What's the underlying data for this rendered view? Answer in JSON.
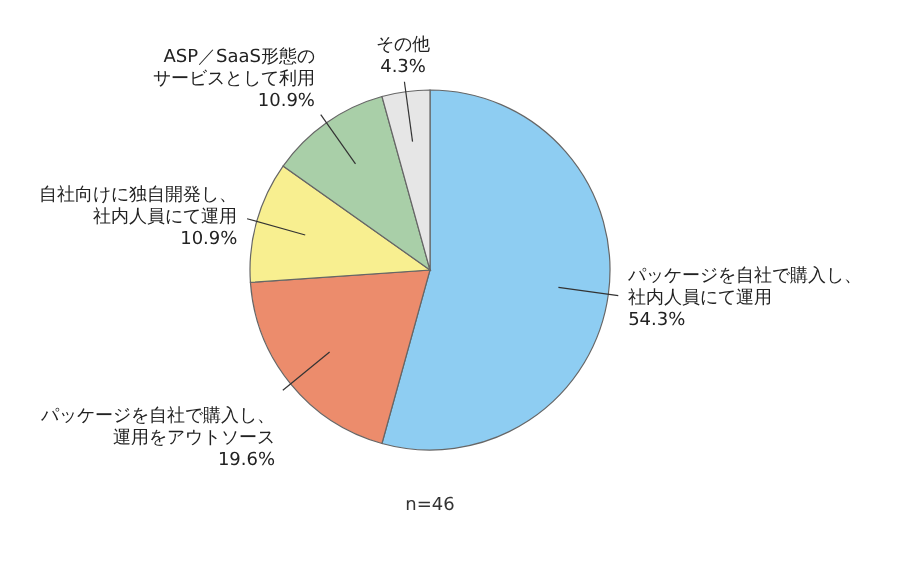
{
  "chart_data": {
    "type": "pie",
    "categories": [
      "パッケージを自社で購入し、社内人員にて運用",
      "パッケージを自社で購入し、運用をアウトソース",
      "自社向けに独自開発し、社内人員にて運用",
      "ASP／SaaS形態のサービスとして利用",
      "その他"
    ],
    "values": [
      54.3,
      19.6,
      10.9,
      10.9,
      4.3
    ],
    "value_labels": [
      "54.3%",
      "19.6%",
      "10.9%",
      "10.9%",
      "4.3%"
    ],
    "colors": [
      "#8ecdf2",
      "#ec8c6c",
      "#f8ef90",
      "#a9cfa8",
      "#e6e6e6"
    ],
    "annotations": [
      "n=46"
    ]
  }
}
